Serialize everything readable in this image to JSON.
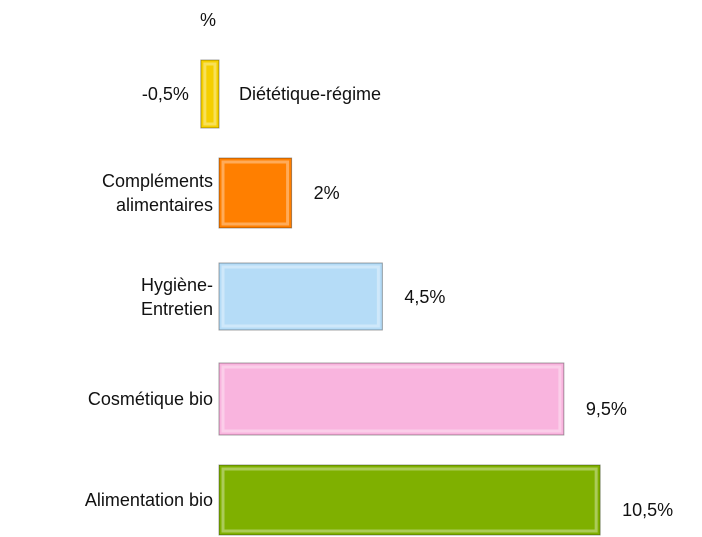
{
  "chart_data": {
    "type": "bar",
    "orientation": "horizontal",
    "title": "%",
    "categories": [
      "Diététique-régime",
      "Compléments alimentaires",
      "Hygiène-Entretien",
      "Cosmétique bio",
      "Alimentation bio"
    ],
    "values": [
      -0.5,
      2,
      4.5,
      9.5,
      10.5
    ],
    "value_labels": [
      "-0,5%",
      "2%",
      "4,5%",
      "9,5%",
      "10,5%"
    ],
    "colors": [
      "#f5cf00",
      "#ff7f00",
      "#b5dcf7",
      "#f9b4de",
      "#7fb000"
    ]
  }
}
